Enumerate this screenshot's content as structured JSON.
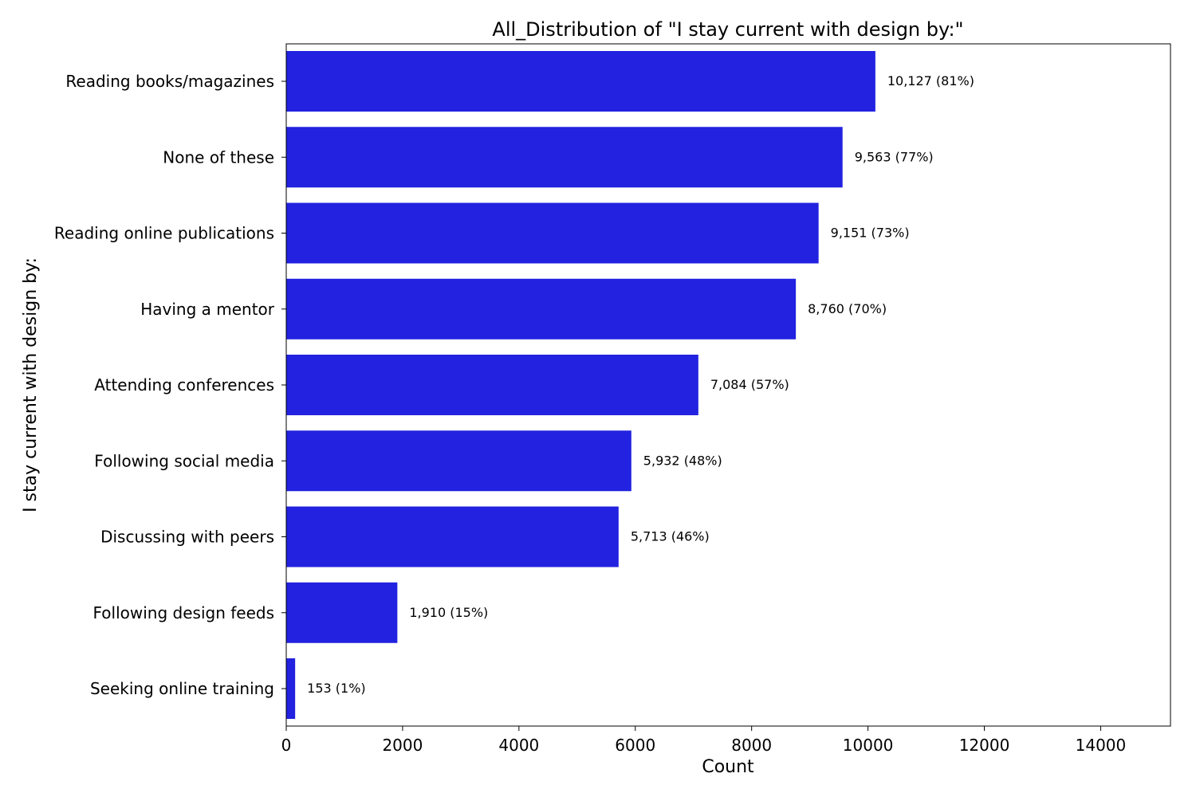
{
  "chart_data": {
    "type": "bar",
    "orientation": "horizontal",
    "title": "All_Distribution of \"I stay current with design by:\"",
    "xlabel": "Count",
    "ylabel": "I stay current with design by:",
    "xlim": [
      0,
      15200
    ],
    "x_ticks": [
      0,
      2000,
      4000,
      6000,
      8000,
      10000,
      12000,
      14000
    ],
    "grid": false,
    "bar_color": "#2222e0",
    "categories": [
      "Reading books/magazines",
      "None of these",
      "Reading online publications",
      "Having a mentor",
      "Attending conferences",
      "Following social media",
      "Discussing with peers",
      "Following design feeds",
      "Seeking online training"
    ],
    "values": [
      10127,
      9563,
      9151,
      8760,
      7084,
      5932,
      5713,
      1910,
      153
    ],
    "data_labels": [
      "10,127 (81%)",
      "9,563 (77%)",
      "9,151 (73%)",
      "8,760 (70%)",
      "7,084 (57%)",
      "5,932 (48%)",
      "5,713 (46%)",
      "1,910 (15%)",
      "153 (1%)"
    ]
  }
}
